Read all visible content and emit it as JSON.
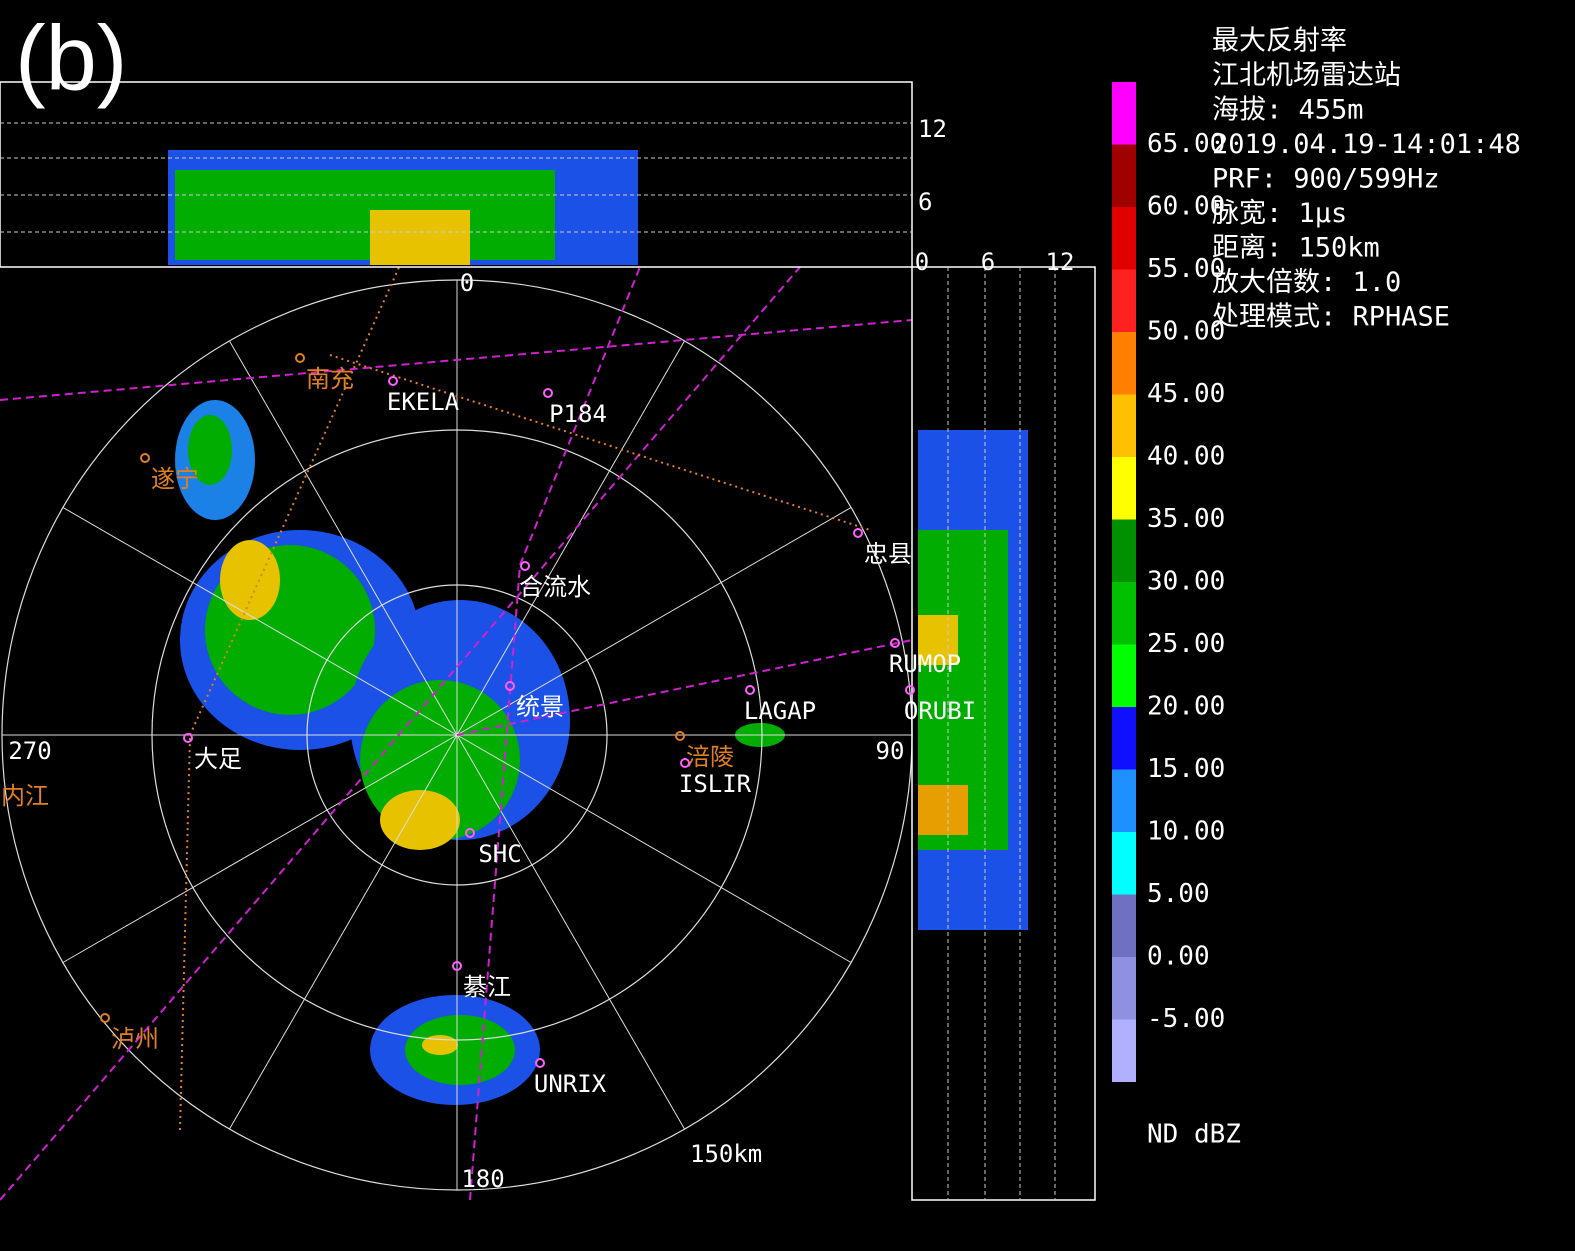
{
  "panel_label": "(b)",
  "info": [
    "最大反射率",
    "江北机场雷达站",
    "海拔: 455m",
    "2019.04.19-14:01:48",
    "PRF: 900/599Hz",
    "脉宽: 1μs",
    "距离: 150km",
    "放大倍数: 1.0",
    "处理模式:  RPHASE"
  ],
  "colorbar": {
    "colors": [
      "#ff00ff",
      "#a00000",
      "#e00000",
      "#ff2020",
      "#ff8000",
      "#ffc000",
      "#ffff00",
      "#009000",
      "#00c000",
      "#00ff00",
      "#1010ff",
      "#1e90ff",
      "#00ffff",
      "#7070c0",
      "#9090e0",
      "#b0b0ff"
    ],
    "labels": [
      "65.00",
      "60.00",
      "55.00",
      "50.00",
      "45.00",
      "40.00",
      "35.00",
      "30.00",
      "25.00",
      "20.00",
      "15.00",
      "10.00",
      "5.00",
      "0.00",
      "-5.00"
    ],
    "unit_label": "ND dBZ"
  },
  "polar": {
    "azimuth_labels": [
      "0",
      "90",
      "180",
      "270"
    ],
    "range_label": "150km"
  },
  "top_panel": {
    "ticks": [
      "12",
      "6"
    ]
  },
  "side_panel": {
    "ticks": [
      "0",
      "6",
      "12"
    ]
  },
  "places": [
    {
      "label": "南充",
      "color": "#e08020"
    },
    {
      "label": "EKELA",
      "color": "#ffffff"
    },
    {
      "label": "P184",
      "color": "#ffffff"
    },
    {
      "label": "遂宁",
      "color": "#e08020"
    },
    {
      "label": "忠县",
      "color": "#ffffff"
    },
    {
      "label": "合流水",
      "color": "#ffffff"
    },
    {
      "label": "RUMOP",
      "color": "#ffffff"
    },
    {
      "label": "ORUBI",
      "color": "#ffffff"
    },
    {
      "label": "LAGAP",
      "color": "#ffffff"
    },
    {
      "label": "统景",
      "color": "#ffffff"
    },
    {
      "label": "涪陵",
      "color": "#e08020"
    },
    {
      "label": "ISLIR",
      "color": "#ffffff"
    },
    {
      "label": "大足",
      "color": "#ffffff"
    },
    {
      "label": "内江",
      "color": "#e08020"
    },
    {
      "label": "SHC",
      "color": "#ffffff"
    },
    {
      "label": "綦江",
      "color": "#ffffff"
    },
    {
      "label": "泸州",
      "color": "#e08020"
    },
    {
      "label": "UNRIX",
      "color": "#ffffff"
    }
  ]
}
